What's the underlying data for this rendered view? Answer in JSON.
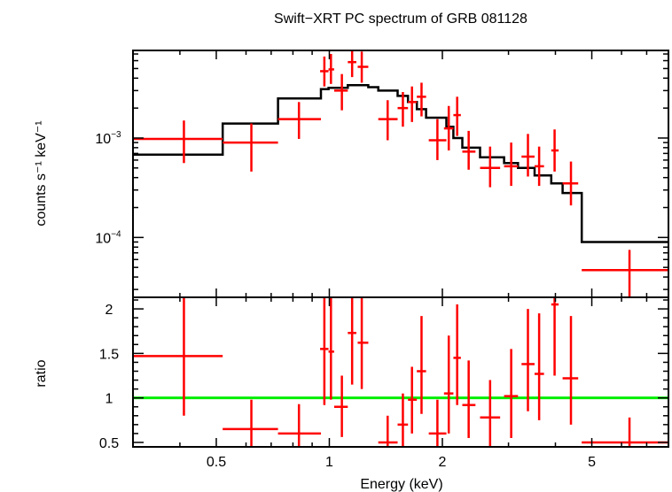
{
  "chart_data": [
    {
      "type": "scatter",
      "panel": "spectrum",
      "title": "Swift−XRT PC spectrum of GRB 081128",
      "xlabel": "Energy (keV)",
      "ylabel": "counts s⁻¹ keV⁻¹",
      "xscale": "log",
      "yscale": "log",
      "xlim": [
        0.3,
        8.0
      ],
      "ylim": [
        2.5e-05,
        0.0076
      ],
      "y_tick_labels": [
        {
          "value": 0.001,
          "base": "10",
          "exp": "−3"
        },
        {
          "value": 0.0001,
          "base": "10",
          "exp": "−4"
        }
      ],
      "series": [
        {
          "name": "data",
          "color": "#ff0000",
          "points": [
            {
              "x": 0.41,
              "xlo": 0.3,
              "xhi": 0.52,
              "y": 0.00098,
              "ylo": 0.00056,
              "yhi": 0.0015
            },
            {
              "x": 0.62,
              "xlo": 0.52,
              "xhi": 0.73,
              "y": 0.0009,
              "ylo": 0.00046,
              "yhi": 0.0014
            },
            {
              "x": 0.83,
              "xlo": 0.73,
              "xhi": 0.95,
              "y": 0.00155,
              "ylo": 0.00098,
              "yhi": 0.0023
            },
            {
              "x": 0.97,
              "xlo": 0.945,
              "xhi": 0.995,
              "y": 0.0047,
              "ylo": 0.0033,
              "yhi": 0.0066
            },
            {
              "x": 1.01,
              "xlo": 0.995,
              "xhi": 1.03,
              "y": 0.0049,
              "ylo": 0.0035,
              "yhi": 0.007
            },
            {
              "x": 1.08,
              "xlo": 1.03,
              "xhi": 1.12,
              "y": 0.003,
              "ylo": 0.0019,
              "yhi": 0.0044
            },
            {
              "x": 1.15,
              "xlo": 1.12,
              "xhi": 1.18,
              "y": 0.0058,
              "ylo": 0.0041,
              "yhi": 0.0076
            },
            {
              "x": 1.22,
              "xlo": 1.19,
              "xhi": 1.27,
              "y": 0.0052,
              "ylo": 0.0036,
              "yhi": 0.0074
            },
            {
              "x": 1.43,
              "xlo": 1.35,
              "xhi": 1.52,
              "y": 0.00155,
              "ylo": 0.00095,
              "yhi": 0.0024
            },
            {
              "x": 1.57,
              "xlo": 1.52,
              "xhi": 1.62,
              "y": 0.002,
              "ylo": 0.0013,
              "yhi": 0.0029
            },
            {
              "x": 1.66,
              "xlo": 1.62,
              "xhi": 1.71,
              "y": 0.0023,
              "ylo": 0.00145,
              "yhi": 0.0033
            },
            {
              "x": 1.76,
              "xlo": 1.71,
              "xhi": 1.81,
              "y": 0.0026,
              "ylo": 0.00165,
              "yhi": 0.0036
            },
            {
              "x": 1.94,
              "xlo": 1.84,
              "xhi": 2.05,
              "y": 0.00095,
              "ylo": 0.0006,
              "yhi": 0.00155
            },
            {
              "x": 2.08,
              "xlo": 2.02,
              "xhi": 2.14,
              "y": 0.00125,
              "ylo": 0.00075,
              "yhi": 0.0021
            },
            {
              "x": 2.19,
              "xlo": 2.14,
              "xhi": 2.24,
              "y": 0.0017,
              "ylo": 0.00105,
              "yhi": 0.0026
            },
            {
              "x": 2.35,
              "xlo": 2.26,
              "xhi": 2.45,
              "y": 0.00073,
              "ylo": 0.00048,
              "yhi": 0.00118
            },
            {
              "x": 2.68,
              "xlo": 2.52,
              "xhi": 2.85,
              "y": 0.0005,
              "ylo": 0.00032,
              "yhi": 0.00082
            },
            {
              "x": 3.05,
              "xlo": 2.92,
              "xhi": 3.18,
              "y": 0.00052,
              "ylo": 0.00033,
              "yhi": 0.0009
            },
            {
              "x": 3.38,
              "xlo": 3.25,
              "xhi": 3.52,
              "y": 0.00065,
              "ylo": 0.00041,
              "yhi": 0.0011
            },
            {
              "x": 3.62,
              "xlo": 3.52,
              "xhi": 3.73,
              "y": 0.00052,
              "ylo": 0.00033,
              "yhi": 0.00082
            },
            {
              "x": 3.98,
              "xlo": 3.9,
              "xhi": 4.08,
              "y": 0.00075,
              "ylo": 0.00046,
              "yhi": 0.00122
            },
            {
              "x": 4.4,
              "xlo": 4.18,
              "xhi": 4.6,
              "y": 0.00035,
              "ylo": 0.00021,
              "yhi": 0.00058
            },
            {
              "x": 6.3,
              "xlo": 4.7,
              "xhi": 8.0,
              "y": 4.7e-05,
              "ylo": 2.5e-05,
              "yhi": 7.5e-05
            }
          ]
        },
        {
          "name": "model",
          "color": "#000000",
          "steps": [
            {
              "xlo": 0.3,
              "xhi": 0.52,
              "y": 0.00068
            },
            {
              "xlo": 0.52,
              "xhi": 0.73,
              "y": 0.0014
            },
            {
              "xlo": 0.73,
              "xhi": 0.95,
              "y": 0.0025
            },
            {
              "xlo": 0.95,
              "xhi": 0.995,
              "y": 0.0031
            },
            {
              "xlo": 0.995,
              "xhi": 1.12,
              "y": 0.0032
            },
            {
              "xlo": 1.12,
              "xhi": 1.27,
              "y": 0.0034
            },
            {
              "xlo": 1.27,
              "xhi": 1.35,
              "y": 0.00325
            },
            {
              "xlo": 1.35,
              "xhi": 1.52,
              "y": 0.003
            },
            {
              "xlo": 1.52,
              "xhi": 1.62,
              "y": 0.00265
            },
            {
              "xlo": 1.62,
              "xhi": 1.71,
              "y": 0.0023
            },
            {
              "xlo": 1.71,
              "xhi": 1.81,
              "y": 0.00195
            },
            {
              "xlo": 1.81,
              "xhi": 2.05,
              "y": 0.0016
            },
            {
              "xlo": 2.05,
              "xhi": 2.14,
              "y": 0.0013
            },
            {
              "xlo": 2.14,
              "xhi": 2.26,
              "y": 0.001
            },
            {
              "xlo": 2.26,
              "xhi": 2.52,
              "y": 0.0008
            },
            {
              "xlo": 2.52,
              "xhi": 2.92,
              "y": 0.00064
            },
            {
              "xlo": 2.92,
              "xhi": 3.18,
              "y": 0.00056
            },
            {
              "xlo": 3.18,
              "xhi": 3.52,
              "y": 0.0005
            },
            {
              "xlo": 3.52,
              "xhi": 3.9,
              "y": 0.00042
            },
            {
              "xlo": 3.9,
              "xhi": 4.18,
              "y": 0.00035
            },
            {
              "xlo": 4.18,
              "xhi": 4.7,
              "y": 0.00028
            },
            {
              "xlo": 4.7,
              "xhi": 8.0,
              "y": 9e-05
            }
          ]
        }
      ]
    },
    {
      "type": "scatter",
      "panel": "ratio",
      "xlabel": "Energy (keV)",
      "ylabel": "ratio",
      "xscale": "log",
      "yscale": "linear",
      "xlim": [
        0.3,
        8.0
      ],
      "ylim": [
        0.45,
        2.13
      ],
      "x_tick_labels": [
        {
          "value": 0.5,
          "label": "0.5"
        },
        {
          "value": 1,
          "label": "1"
        },
        {
          "value": 2,
          "label": "2"
        },
        {
          "value": 5,
          "label": "5"
        }
      ],
      "y_tick_labels": [
        {
          "value": 0.5,
          "label": "0.5"
        },
        {
          "value": 1,
          "label": "1"
        },
        {
          "value": 1.5,
          "label": "1.5"
        },
        {
          "value": 2,
          "label": "2"
        }
      ],
      "reference_line": {
        "y": 1,
        "color": "#00ee00"
      },
      "series": [
        {
          "name": "ratio",
          "color": "#ff0000",
          "points": [
            {
              "x": 0.41,
              "xlo": 0.3,
              "xhi": 0.52,
              "y": 1.47,
              "ylo": 0.8,
              "yhi": 2.13
            },
            {
              "x": 0.62,
              "xlo": 0.52,
              "xhi": 0.73,
              "y": 0.65,
              "ylo": 0.45,
              "yhi": 0.98
            },
            {
              "x": 0.83,
              "xlo": 0.73,
              "xhi": 0.95,
              "y": 0.6,
              "ylo": 0.45,
              "yhi": 0.93
            },
            {
              "x": 0.97,
              "xlo": 0.945,
              "xhi": 0.995,
              "y": 1.55,
              "ylo": 0.92,
              "yhi": 2.13
            },
            {
              "x": 1.01,
              "xlo": 0.995,
              "xhi": 1.03,
              "y": 1.52,
              "ylo": 0.98,
              "yhi": 2.13
            },
            {
              "x": 1.08,
              "xlo": 1.03,
              "xhi": 1.12,
              "y": 0.9,
              "ylo": 0.56,
              "yhi": 1.25
            },
            {
              "x": 1.15,
              "xlo": 1.12,
              "xhi": 1.18,
              "y": 1.73,
              "ylo": 1.15,
              "yhi": 2.13
            },
            {
              "x": 1.22,
              "xlo": 1.19,
              "xhi": 1.27,
              "y": 1.62,
              "ylo": 1.1,
              "yhi": 2.13
            },
            {
              "x": 1.43,
              "xlo": 1.35,
              "xhi": 1.52,
              "y": 0.5,
              "ylo": 0.45,
              "yhi": 0.8
            },
            {
              "x": 1.57,
              "xlo": 1.52,
              "xhi": 1.62,
              "y": 0.7,
              "ylo": 0.45,
              "yhi": 1.05
            },
            {
              "x": 1.66,
              "xlo": 1.62,
              "xhi": 1.71,
              "y": 0.98,
              "ylo": 0.6,
              "yhi": 1.35
            },
            {
              "x": 1.76,
              "xlo": 1.71,
              "xhi": 1.81,
              "y": 1.3,
              "ylo": 0.82,
              "yhi": 1.92
            },
            {
              "x": 1.94,
              "xlo": 1.84,
              "xhi": 2.05,
              "y": 0.6,
              "ylo": 0.45,
              "yhi": 0.98
            },
            {
              "x": 2.08,
              "xlo": 2.02,
              "xhi": 2.14,
              "y": 1.05,
              "ylo": 0.6,
              "yhi": 1.7
            },
            {
              "x": 2.19,
              "xlo": 2.14,
              "xhi": 2.24,
              "y": 1.45,
              "ylo": 0.92,
              "yhi": 2.05
            },
            {
              "x": 2.35,
              "xlo": 2.26,
              "xhi": 2.45,
              "y": 0.92,
              "ylo": 0.55,
              "yhi": 1.42
            },
            {
              "x": 2.68,
              "xlo": 2.52,
              "xhi": 2.85,
              "y": 0.78,
              "ylo": 0.45,
              "yhi": 1.2
            },
            {
              "x": 3.05,
              "xlo": 2.92,
              "xhi": 3.18,
              "y": 1.02,
              "ylo": 0.55,
              "yhi": 1.55
            },
            {
              "x": 3.38,
              "xlo": 3.25,
              "xhi": 3.52,
              "y": 1.38,
              "ylo": 0.85,
              "yhi": 2.0
            },
            {
              "x": 3.62,
              "xlo": 3.52,
              "xhi": 3.73,
              "y": 1.27,
              "ylo": 0.75,
              "yhi": 1.95
            },
            {
              "x": 3.98,
              "xlo": 3.9,
              "xhi": 4.08,
              "y": 2.05,
              "ylo": 1.25,
              "yhi": 2.13
            },
            {
              "x": 4.4,
              "xlo": 4.18,
              "xhi": 4.6,
              "y": 1.22,
              "ylo": 0.7,
              "yhi": 1.92
            },
            {
              "x": 6.3,
              "xlo": 4.7,
              "xhi": 8.0,
              "y": 0.5,
              "ylo": 0.45,
              "yhi": 0.78
            }
          ]
        }
      ]
    }
  ]
}
